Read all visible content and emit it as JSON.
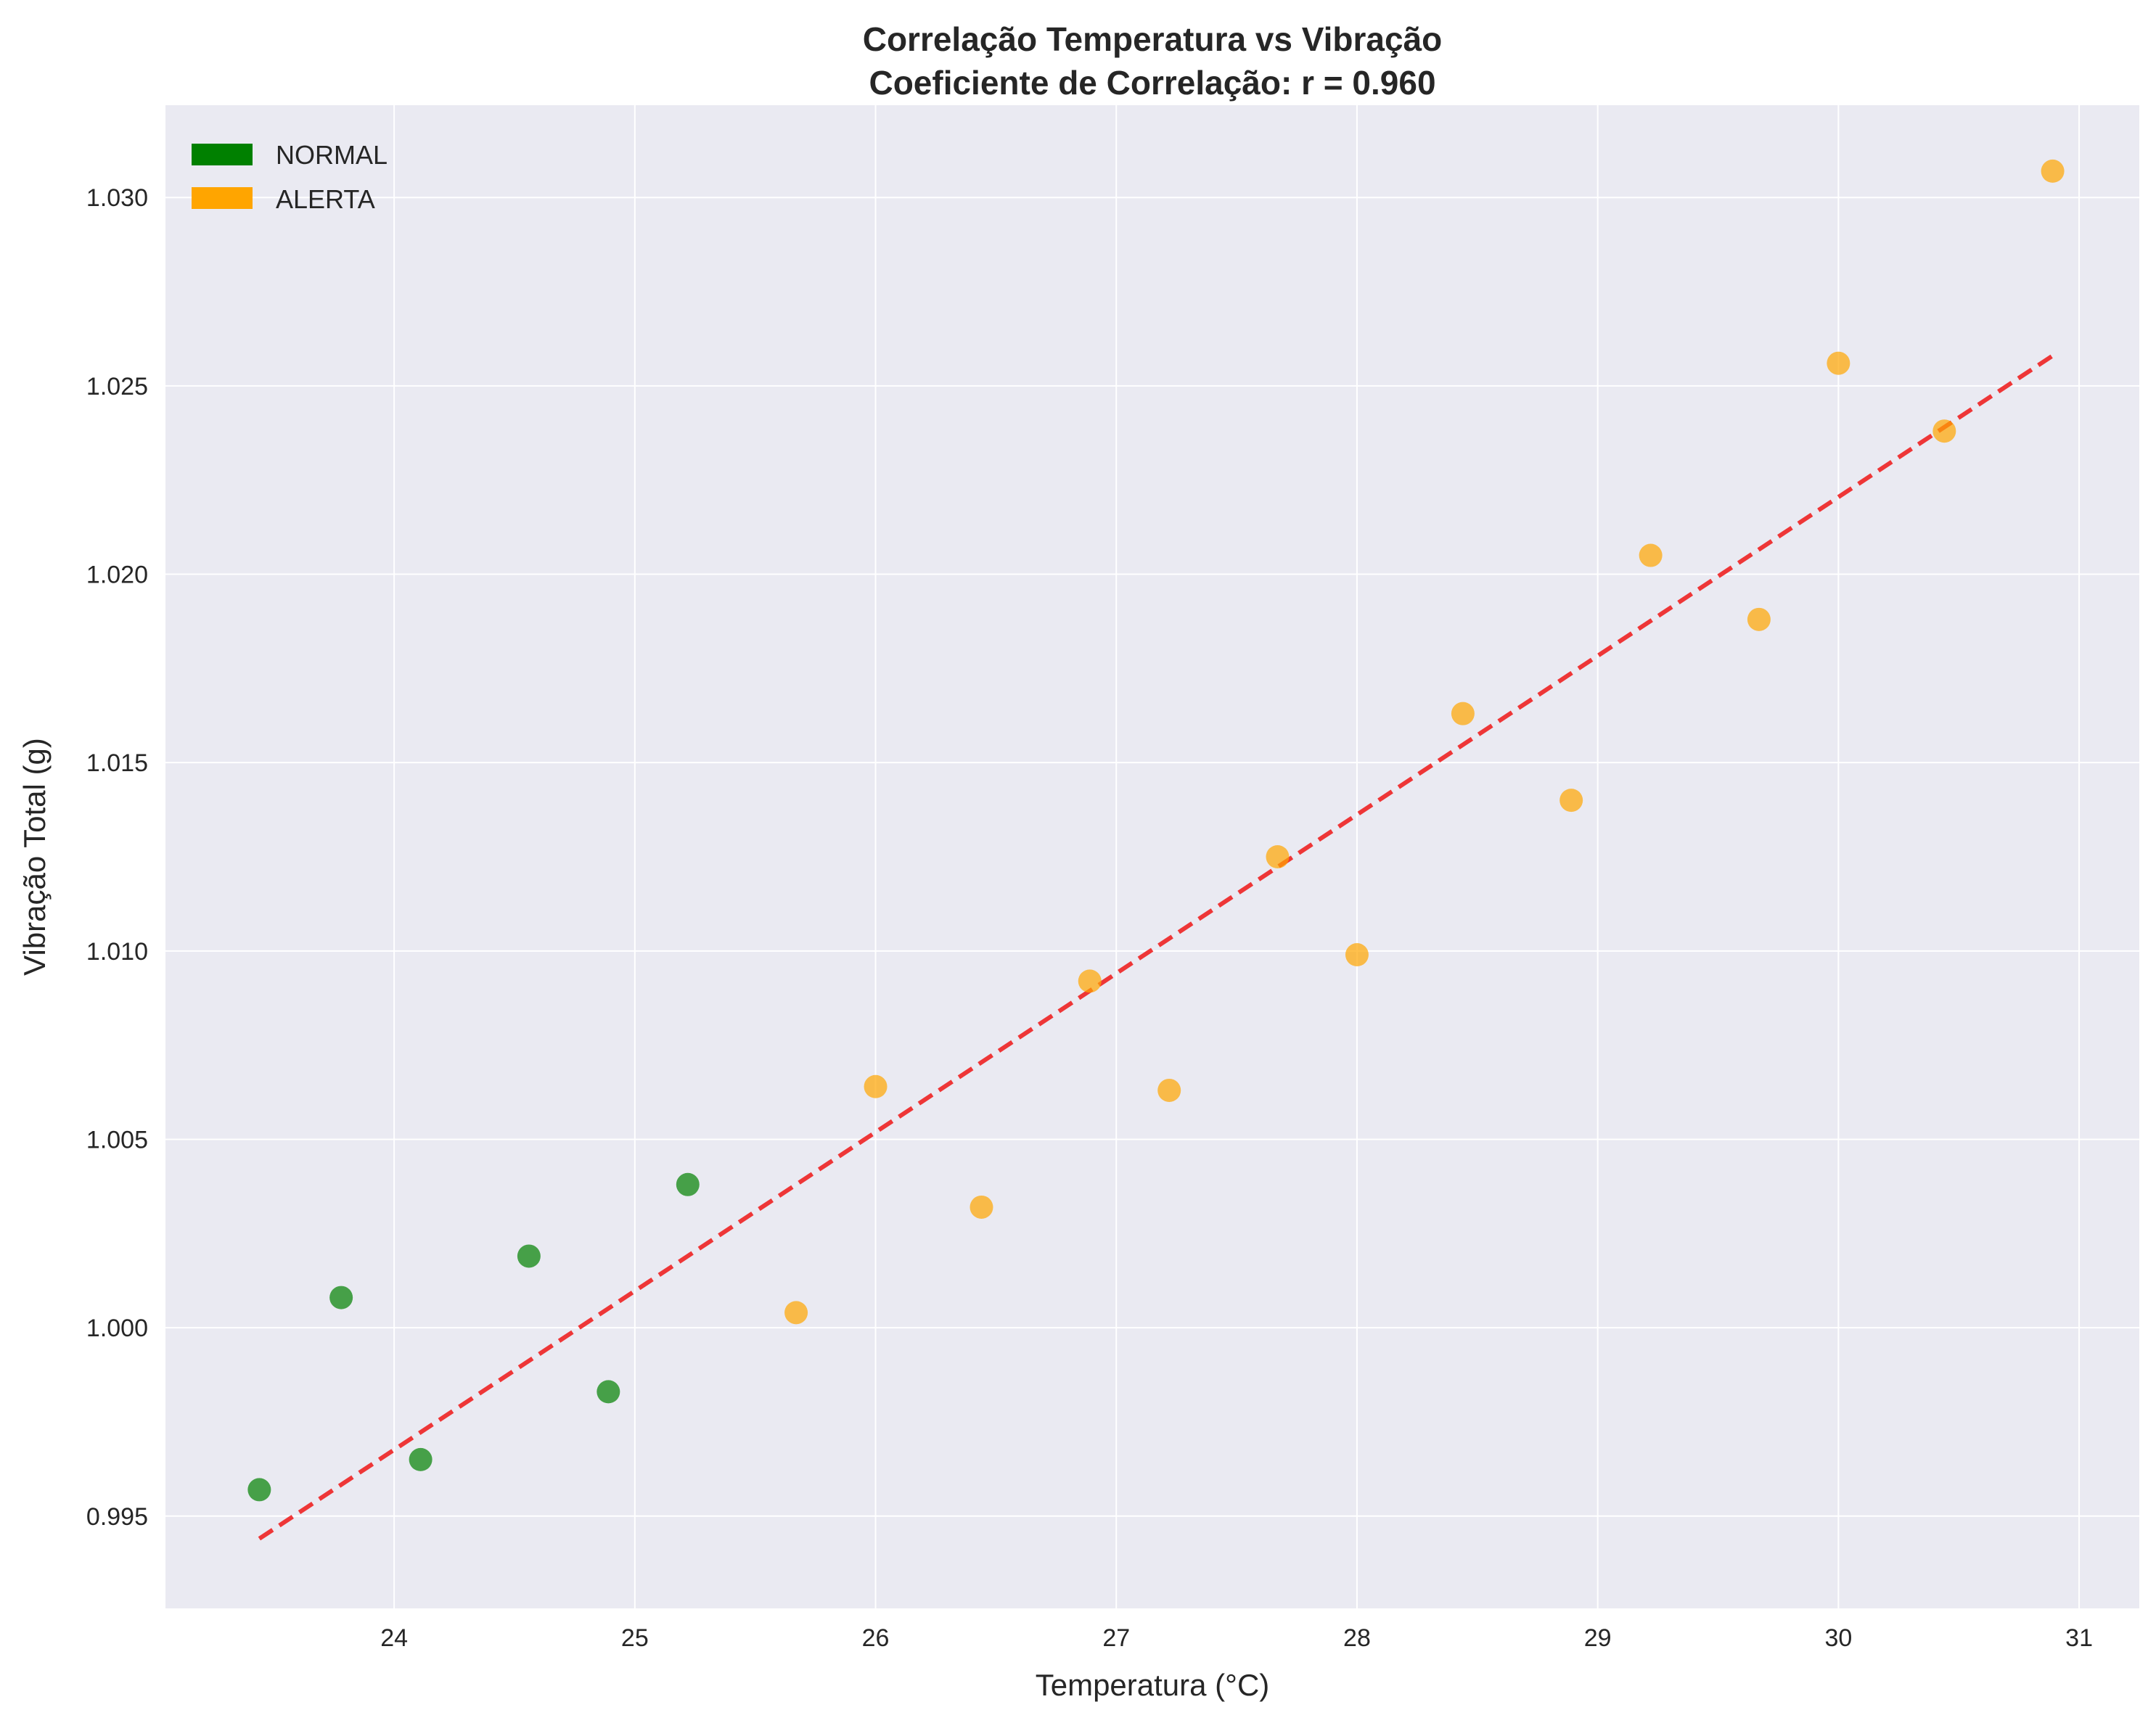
{
  "chart_data": {
    "type": "scatter",
    "title_line1": "Correlação Temperatura vs Vibração",
    "title_line2": "Coeficiente de Correlação: r = 0.960",
    "xlabel": "Temperatura (°C)",
    "ylabel": "Vibração Total (g)",
    "xlim": [
      23.05,
      31.25
    ],
    "ylim": [
      0.99255,
      1.03245
    ],
    "x_ticks": [
      24,
      25,
      26,
      27,
      28,
      29,
      30,
      31
    ],
    "x_tick_labels": [
      "24",
      "25",
      "26",
      "27",
      "28",
      "29",
      "30",
      "31"
    ],
    "y_ticks": [
      0.995,
      1.0,
      1.005,
      1.01,
      1.015,
      1.02,
      1.025,
      1.03
    ],
    "y_tick_labels": [
      "0.995",
      "1.000",
      "1.005",
      "1.010",
      "1.015",
      "1.020",
      "1.025",
      "1.030"
    ],
    "grid": true,
    "legend_position": "top-left",
    "series": [
      {
        "name": "NORMAL",
        "color": "#008000",
        "points": [
          {
            "x": 23.44,
            "y": 0.9957
          },
          {
            "x": 23.78,
            "y": 1.0008
          },
          {
            "x": 24.11,
            "y": 0.9965
          },
          {
            "x": 24.56,
            "y": 1.0019
          },
          {
            "x": 24.89,
            "y": 0.9983
          },
          {
            "x": 25.22,
            "y": 1.0038
          }
        ]
      },
      {
        "name": "ALERTA",
        "color": "#FFA500",
        "points": [
          {
            "x": 25.67,
            "y": 1.0004
          },
          {
            "x": 26.0,
            "y": 1.0064
          },
          {
            "x": 26.44,
            "y": 1.0032
          },
          {
            "x": 26.89,
            "y": 1.0092
          },
          {
            "x": 27.22,
            "y": 1.0063
          },
          {
            "x": 27.67,
            "y": 1.0125
          },
          {
            "x": 28.0,
            "y": 1.0099
          },
          {
            "x": 28.44,
            "y": 1.0163
          },
          {
            "x": 28.89,
            "y": 1.014
          },
          {
            "x": 29.22,
            "y": 1.0205
          },
          {
            "x": 29.67,
            "y": 1.0188
          },
          {
            "x": 30.0,
            "y": 1.0256
          },
          {
            "x": 30.44,
            "y": 1.0238
          },
          {
            "x": 30.89,
            "y": 1.0307
          }
        ]
      }
    ],
    "trend_line": {
      "color": "#EE2222",
      "style": "dashed",
      "start": {
        "x": 23.44,
        "y": 0.9944
      },
      "end": {
        "x": 30.89,
        "y": 1.0258
      }
    },
    "colors": {
      "plot_background": "#EAEAF2",
      "grid": "#FFFFFF"
    }
  }
}
